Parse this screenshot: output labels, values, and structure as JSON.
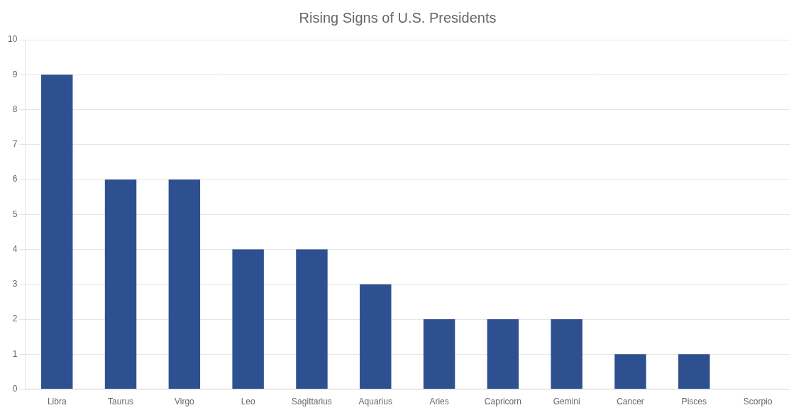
{
  "chart_data": {
    "type": "bar",
    "title": "Rising Signs of U.S. Presidents",
    "categories": [
      "Libra",
      "Taurus",
      "Virgo",
      "Leo",
      "Sagittarius",
      "Aquarius",
      "Aries",
      "Capricorn",
      "Gemini",
      "Cancer",
      "Pisces",
      "Scorpio"
    ],
    "values": [
      9,
      6,
      6,
      4,
      4,
      3,
      2,
      2,
      2,
      1,
      1,
      0
    ],
    "color": "#2e5090",
    "ylim": [
      0,
      10
    ],
    "yticks": [
      0,
      1,
      2,
      3,
      4,
      5,
      6,
      7,
      8,
      9,
      10
    ],
    "grid": true
  }
}
